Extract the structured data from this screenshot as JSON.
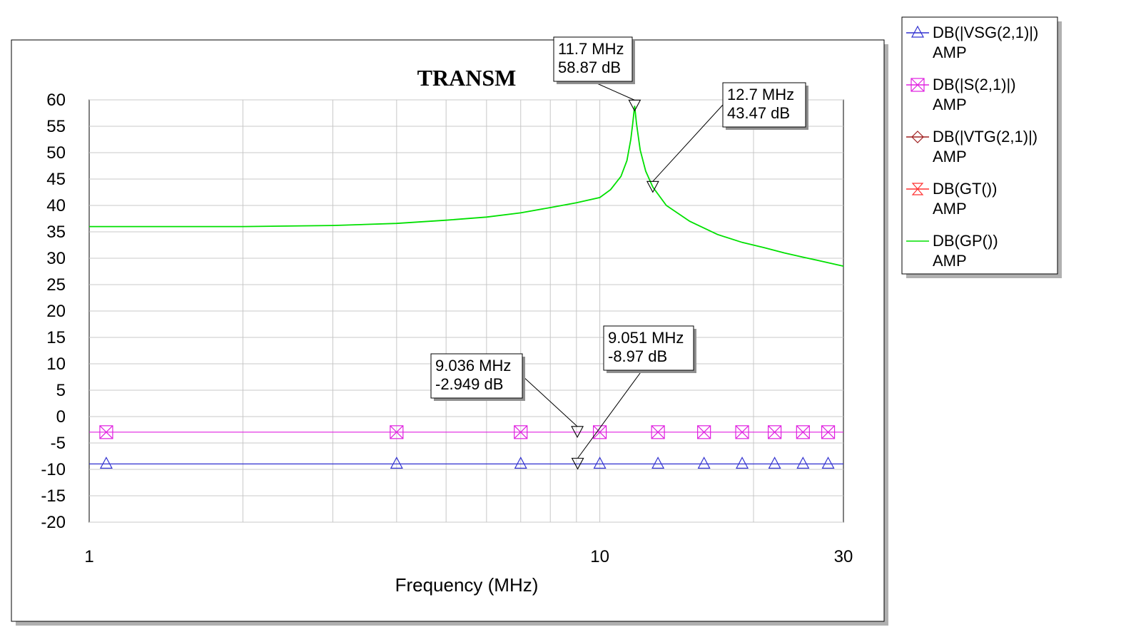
{
  "chart_data": {
    "type": "line",
    "title": "TRANSM",
    "xlabel": "Frequency (MHz)",
    "ylabel": "",
    "x_scale": "log",
    "xlim": [
      1,
      30
    ],
    "ylim": [
      -20,
      60
    ],
    "x_ticks": [
      1,
      10,
      30
    ],
    "y_ticks": [
      60,
      55,
      50,
      45,
      40,
      35,
      30,
      25,
      20,
      15,
      10,
      5,
      0,
      -5,
      -10,
      -15,
      -20
    ],
    "grid": true,
    "legend_placement": "outside-right",
    "series": [
      {
        "name": "DB(|VSG(2,1)|)",
        "name2": "AMP",
        "color": "#3030d0",
        "marker": "triangle",
        "x": [
          1.08,
          4,
          7,
          10,
          13,
          16,
          19,
          22,
          25,
          28
        ],
        "y": [
          -8.97,
          -8.97,
          -8.97,
          -8.97,
          -8.97,
          -8.97,
          -8.97,
          -8.97,
          -8.97,
          -8.97
        ]
      },
      {
        "name": "DB(|S(2,1)|)",
        "name2": "AMP",
        "color": "#e020e0",
        "marker": "square-x",
        "x": [
          1.08,
          4,
          7,
          10,
          13,
          16,
          19,
          22,
          25,
          28
        ],
        "y": [
          -2.95,
          -2.95,
          -2.95,
          -2.95,
          -2.95,
          -2.95,
          -2.95,
          -2.95,
          -2.95,
          -2.95
        ]
      },
      {
        "name": "DB(|VTG(2,1)|)",
        "name2": "AMP",
        "color": "#a02020",
        "marker": "diamond",
        "x": [],
        "y": []
      },
      {
        "name": "DB(GT())",
        "name2": "AMP",
        "color": "#ff3030",
        "marker": "hourglass",
        "x": [],
        "y": []
      },
      {
        "name": "DB(GP())",
        "name2": "AMP",
        "color": "#00e000",
        "marker": "none",
        "x": [
          1,
          2,
          3,
          4,
          5,
          6,
          7,
          8,
          9,
          10,
          10.5,
          11,
          11.3,
          11.5,
          11.6,
          11.7,
          11.8,
          12,
          12.3,
          12.7,
          13.5,
          15,
          17,
          19,
          21,
          23,
          25,
          27,
          30
        ],
        "y": [
          36,
          36,
          36.2,
          36.6,
          37.2,
          37.8,
          38.6,
          39.6,
          40.5,
          41.5,
          43.0,
          45.5,
          48.5,
          52.5,
          55.5,
          58.87,
          55.5,
          50.5,
          46.5,
          43.47,
          40.0,
          37.0,
          34.5,
          33.0,
          32.0,
          31.0,
          30.2,
          29.5,
          28.5
        ]
      }
    ],
    "markers": [
      {
        "freq": 11.7,
        "db": 58.87,
        "line1": "11.7 MHz",
        "line2": "58.87 dB"
      },
      {
        "freq": 12.7,
        "db": 43.47,
        "line1": "12.7 MHz",
        "line2": "43.47 dB"
      },
      {
        "freq": 9.036,
        "db": -2.949,
        "line1": "9.036 MHz",
        "line2": "-2.949 dB"
      },
      {
        "freq": 9.051,
        "db": -8.97,
        "line1": "9.051 MHz",
        "line2": "-8.97 dB"
      }
    ]
  }
}
